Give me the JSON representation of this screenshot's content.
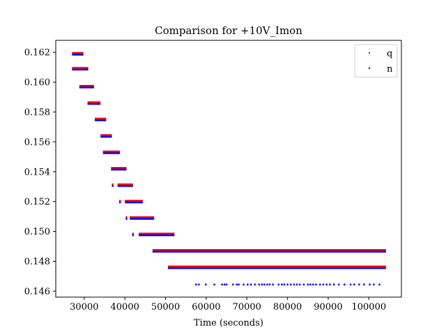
{
  "chart_data": {
    "type": "scatter",
    "title": "Comparison for +10V_Imon",
    "xlabel": "Time (seconds)",
    "ylabel": "",
    "xlim": [
      23000,
      108000
    ],
    "ylim": [
      0.1456,
      0.1628
    ],
    "x_ticks": [
      30000,
      40000,
      50000,
      60000,
      70000,
      80000,
      90000,
      100000
    ],
    "y_ticks": [
      0.146,
      0.148,
      0.15,
      0.152,
      0.154,
      0.156,
      0.158,
      0.16,
      0.162
    ],
    "grid": false,
    "legend_position": "top-right",
    "series": [
      {
        "name": "q",
        "color": "#ff0000",
        "segments": [
          {
            "y": 0.1619,
            "x_start": 27000,
            "x_end": 29800
          },
          {
            "y": 0.1609,
            "x_start": 27000,
            "x_end": 31000
          },
          {
            "y": 0.1597,
            "x_start": 28800,
            "x_end": 32400
          },
          {
            "y": 0.1586,
            "x_start": 30800,
            "x_end": 34000
          },
          {
            "y": 0.1575,
            "x_start": 32600,
            "x_end": 35400
          },
          {
            "y": 0.1564,
            "x_start": 34000,
            "x_end": 36800
          },
          {
            "y": 0.1553,
            "x_start": 34600,
            "x_end": 38800
          },
          {
            "y": 0.1542,
            "x_start": 36600,
            "x_end": 40400
          },
          {
            "y": 0.1531,
            "x_start": 38200,
            "x_end": 42000
          },
          {
            "y": 0.152,
            "x_start": 40000,
            "x_end": 44400
          },
          {
            "y": 0.1509,
            "x_start": 41200,
            "x_end": 47200
          },
          {
            "y": 0.1498,
            "x_start": 43400,
            "x_end": 52200
          },
          {
            "y": 0.1487,
            "x_start": 46800,
            "x_end": 104200
          },
          {
            "y": 0.1476,
            "x_start": 50600,
            "x_end": 104200
          }
        ],
        "points": [
          {
            "x": 37000,
            "y": 0.1531
          },
          {
            "x": 38800,
            "y": 0.152
          },
          {
            "x": 40400,
            "y": 0.1509
          },
          {
            "x": 42000,
            "y": 0.1498
          }
        ]
      },
      {
        "name": "n",
        "color": "#0000ff",
        "segments": [
          {
            "y": 0.1619,
            "x_start": 27000,
            "x_end": 29800
          },
          {
            "y": 0.1609,
            "x_start": 27000,
            "x_end": 31000
          },
          {
            "y": 0.1597,
            "x_start": 28800,
            "x_end": 32400
          },
          {
            "y": 0.1586,
            "x_start": 30800,
            "x_end": 34000
          },
          {
            "y": 0.1575,
            "x_start": 32600,
            "x_end": 35400
          },
          {
            "y": 0.1564,
            "x_start": 34000,
            "x_end": 36800
          },
          {
            "y": 0.1553,
            "x_start": 34600,
            "x_end": 38800
          },
          {
            "y": 0.1542,
            "x_start": 36600,
            "x_end": 40400
          },
          {
            "y": 0.1531,
            "x_start": 38200,
            "x_end": 42000
          },
          {
            "y": 0.152,
            "x_start": 40000,
            "x_end": 44400
          },
          {
            "y": 0.1509,
            "x_start": 41200,
            "x_end": 47200
          },
          {
            "y": 0.1498,
            "x_start": 43400,
            "x_end": 52200
          },
          {
            "y": 0.1487,
            "x_start": 46800,
            "x_end": 104200
          },
          {
            "y": 0.1476,
            "x_start": 50600,
            "x_end": 104200
          }
        ],
        "points": [
          {
            "x": 37000,
            "y": 0.1531
          },
          {
            "x": 38800,
            "y": 0.152
          },
          {
            "x": 40400,
            "y": 0.1509
          },
          {
            "x": 42000,
            "y": 0.1498
          },
          {
            "x": 57500,
            "y": 0.1465
          },
          {
            "x": 58200,
            "y": 0.1465
          },
          {
            "x": 59900,
            "y": 0.1465
          },
          {
            "x": 62000,
            "y": 0.1465
          },
          {
            "x": 63900,
            "y": 0.1465
          },
          {
            "x": 64500,
            "y": 0.1465
          },
          {
            "x": 65000,
            "y": 0.1465
          },
          {
            "x": 66600,
            "y": 0.1465
          },
          {
            "x": 67500,
            "y": 0.1465
          },
          {
            "x": 68000,
            "y": 0.1465
          },
          {
            "x": 69200,
            "y": 0.1465
          },
          {
            "x": 70200,
            "y": 0.1465
          },
          {
            "x": 71000,
            "y": 0.1465
          },
          {
            "x": 72000,
            "y": 0.1465
          },
          {
            "x": 73000,
            "y": 0.1465
          },
          {
            "x": 73700,
            "y": 0.1465
          },
          {
            "x": 74300,
            "y": 0.1465
          },
          {
            "x": 75000,
            "y": 0.1465
          },
          {
            "x": 75600,
            "y": 0.1465
          },
          {
            "x": 76400,
            "y": 0.1465
          },
          {
            "x": 77800,
            "y": 0.1465
          },
          {
            "x": 78600,
            "y": 0.1465
          },
          {
            "x": 79200,
            "y": 0.1465
          },
          {
            "x": 80000,
            "y": 0.1465
          },
          {
            "x": 80800,
            "y": 0.1465
          },
          {
            "x": 81600,
            "y": 0.1465
          },
          {
            "x": 82300,
            "y": 0.1465
          },
          {
            "x": 83000,
            "y": 0.1465
          },
          {
            "x": 84000,
            "y": 0.1465
          },
          {
            "x": 85000,
            "y": 0.1465
          },
          {
            "x": 85600,
            "y": 0.1465
          },
          {
            "x": 86300,
            "y": 0.1465
          },
          {
            "x": 87000,
            "y": 0.1465
          },
          {
            "x": 88000,
            "y": 0.1465
          },
          {
            "x": 88800,
            "y": 0.1465
          },
          {
            "x": 89600,
            "y": 0.1465
          },
          {
            "x": 90400,
            "y": 0.1465
          },
          {
            "x": 91400,
            "y": 0.1465
          },
          {
            "x": 92600,
            "y": 0.1465
          },
          {
            "x": 94000,
            "y": 0.1465
          },
          {
            "x": 95500,
            "y": 0.1465
          },
          {
            "x": 96400,
            "y": 0.1465
          },
          {
            "x": 97600,
            "y": 0.1465
          },
          {
            "x": 98800,
            "y": 0.1465
          },
          {
            "x": 100200,
            "y": 0.1465
          },
          {
            "x": 101200,
            "y": 0.1465
          },
          {
            "x": 102600,
            "y": 0.1465
          }
        ]
      }
    ]
  }
}
